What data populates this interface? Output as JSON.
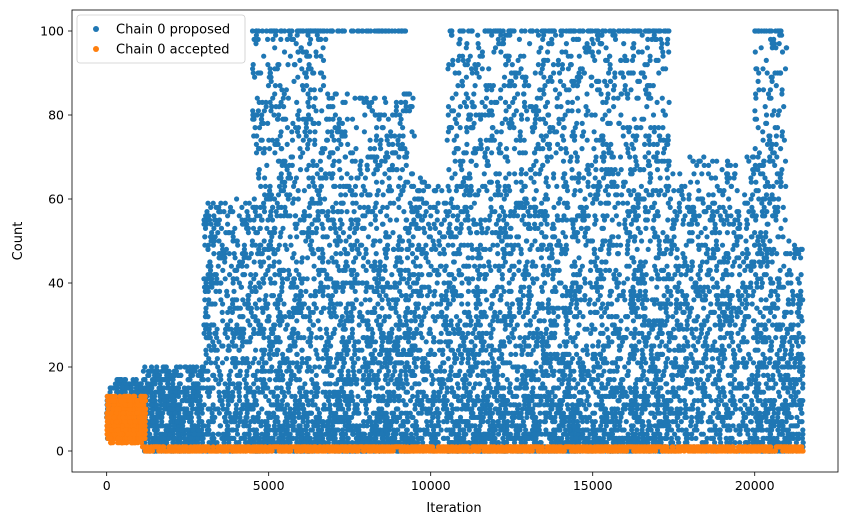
{
  "chart_data": {
    "type": "scatter",
    "xlabel": "Iteration",
    "ylabel": "Count",
    "xlim": [
      -1070,
      22570
    ],
    "ylim": [
      -5,
      105
    ],
    "xticks": [
      0,
      5000,
      10000,
      15000,
      20000
    ],
    "yticks": [
      0,
      20,
      40,
      60,
      80,
      100
    ],
    "grid": false,
    "legend_position": "top-left",
    "series": [
      {
        "name": "Chain 0 proposed",
        "color": "#1f77b4",
        "marker": "circle",
        "description_of_density": [
          {
            "x_range": [
              0,
              1200
            ],
            "y_range": [
              3,
              17
            ]
          },
          {
            "x_range": [
              1100,
              3000
            ],
            "y_range": [
              0,
              20
            ]
          },
          {
            "x_range": [
              3000,
              4500
            ],
            "y_range": [
              0,
              60
            ]
          },
          {
            "x_range": [
              4500,
              6800
            ],
            "y_range": [
              0,
              100
            ]
          },
          {
            "x_range": [
              6800,
              9500
            ],
            "y_range": [
              0,
              85
            ]
          },
          {
            "x_range": [
              9500,
              10500
            ],
            "y_range": [
              0,
              65
            ]
          },
          {
            "x_range": [
              10500,
              17400
            ],
            "y_range": [
              0,
              100
            ]
          },
          {
            "x_range": [
              17400,
              20000
            ],
            "y_range": [
              0,
              70
            ]
          },
          {
            "x_range": [
              20000,
              21000
            ],
            "y_range": [
              0,
              100
            ]
          },
          {
            "x_range": [
              21000,
              21500
            ],
            "y_range": [
              0,
              50
            ]
          }
        ]
      },
      {
        "name": "Chain 0 accepted",
        "color": "#ff7f0e",
        "marker": "circle",
        "description_of_density": [
          {
            "x_range": [
              0,
              1200
            ],
            "y_range": [
              2,
              13
            ]
          },
          {
            "x_range": [
              1100,
              21500
            ],
            "y_range": [
              0,
              1
            ]
          }
        ]
      }
    ]
  }
}
